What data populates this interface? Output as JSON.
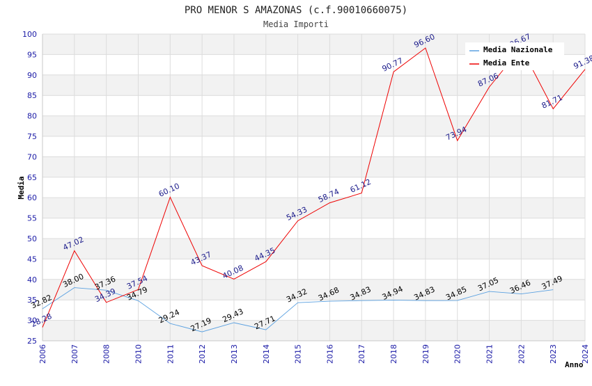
{
  "chart_data": {
    "type": "line",
    "title": "PRO MENOR S AMAZONAS (c.f.90010660075)",
    "subtitle": "Media Importi",
    "xlabel": "Anno",
    "ylabel": "Media",
    "categories": [
      "2006",
      "2007",
      "2008",
      "2010",
      "2011",
      "2012",
      "2013",
      "2014",
      "2015",
      "2016",
      "2017",
      "2018",
      "2019",
      "2020",
      "2021",
      "2022",
      "2023",
      "2024"
    ],
    "ylim": [
      25,
      100
    ],
    "yticks": [
      25,
      30,
      35,
      40,
      45,
      50,
      55,
      60,
      65,
      70,
      75,
      80,
      85,
      90,
      95,
      100
    ],
    "series": [
      {
        "name": "Media Nazionale",
        "color": "#5aa0e0",
        "values": [
          32.82,
          38.0,
          37.36,
          34.79,
          29.24,
          27.19,
          29.43,
          27.71,
          34.32,
          34.68,
          34.83,
          34.94,
          34.83,
          34.85,
          37.05,
          36.46,
          37.49,
          null
        ],
        "labels": [
          "32.82",
          "38.00",
          "37.36",
          "34.79",
          "29.24",
          "27.19",
          "29.43",
          "27.71",
          "34.32",
          "34.68",
          "34.83",
          "34.94",
          "34.83",
          "34.85",
          "37.05",
          "36.46",
          "37.49",
          null
        ]
      },
      {
        "name": "Media Ente",
        "color": "#ee0000",
        "values": [
          28.28,
          47.02,
          34.39,
          37.54,
          60.1,
          43.37,
          40.08,
          44.35,
          54.33,
          58.74,
          61.12,
          90.77,
          96.6,
          73.94,
          87.06,
          96.67,
          81.71,
          91.38
        ],
        "labels": [
          "28.28",
          "47.02",
          "34.39",
          "37.54",
          "60.10",
          "43.37",
          "40.08",
          "44.35",
          "54.33",
          "58.74",
          "61.12",
          "90.77",
          "96.60",
          "73.94",
          "87.06",
          "96.67",
          "81.71",
          "91.38"
        ]
      }
    ],
    "legend": {
      "position": "top-right"
    },
    "grid": true
  }
}
